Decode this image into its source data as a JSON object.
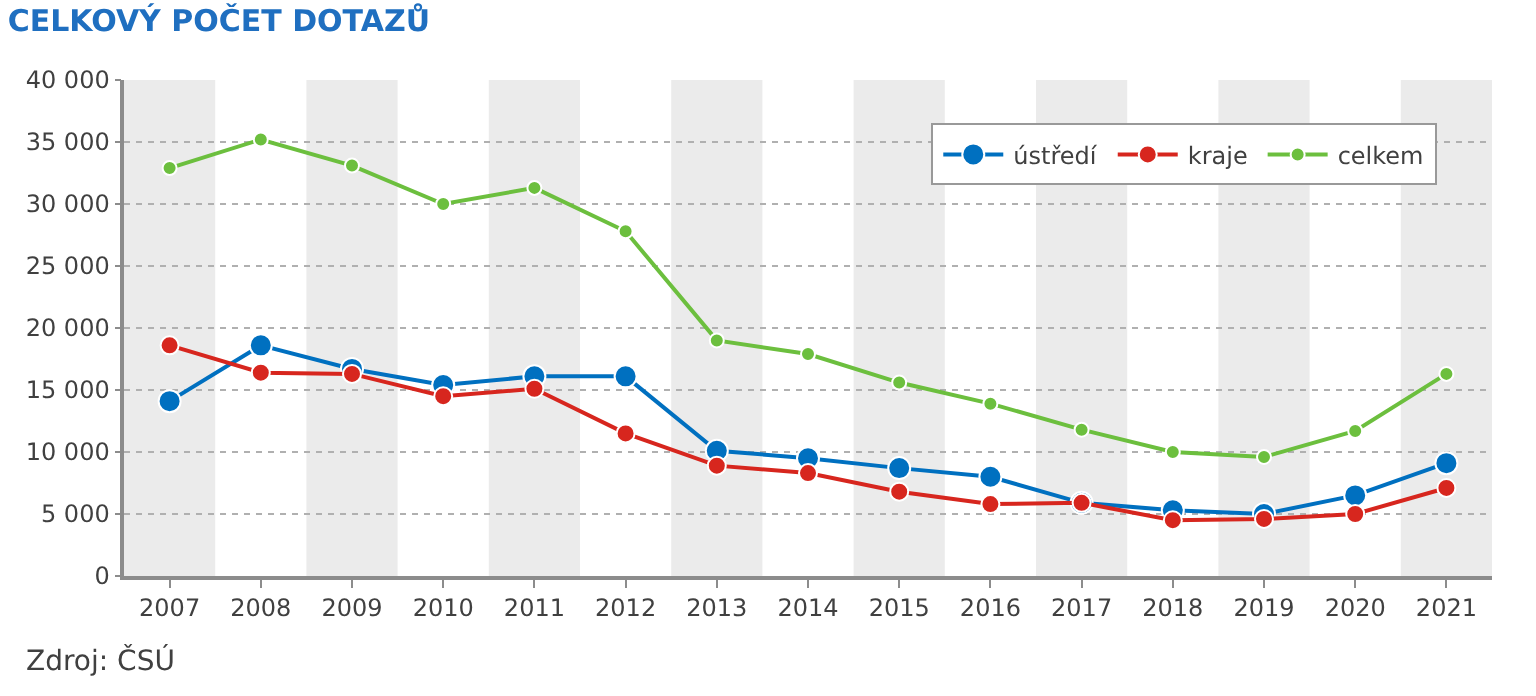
{
  "chart_data": {
    "type": "line",
    "title": "CELKOVÝ POČET DOTAZŮ",
    "categories": [
      "2007",
      "2008",
      "2009",
      "2010",
      "2011",
      "2012",
      "2013",
      "2014",
      "2015",
      "2016",
      "2017",
      "2018",
      "2019",
      "2020",
      "2021"
    ],
    "series": [
      {
        "name": "ústředí",
        "color": "#0070c0",
        "values": [
          14100,
          18600,
          16700,
          15400,
          16100,
          16100,
          10100,
          9500,
          8700,
          8000,
          5900,
          5300,
          5000,
          6500,
          9100
        ]
      },
      {
        "name": "kraje",
        "color": "#d7261e",
        "values": [
          18600,
          16400,
          16300,
          14500,
          15100,
          11500,
          8900,
          8300,
          6800,
          5800,
          5900,
          4500,
          4600,
          5000,
          7100
        ]
      },
      {
        "name": "celkem",
        "color": "#6cbf3e",
        "values": [
          32900,
          35200,
          33100,
          30000,
          31300,
          27800,
          19000,
          17900,
          15600,
          13900,
          11800,
          10000,
          9600,
          11700,
          16300
        ]
      }
    ],
    "ylim": [
      0,
      40000
    ],
    "yticks": [
      {
        "value": 0,
        "label": "0"
      },
      {
        "value": 5000,
        "label": "5 000"
      },
      {
        "value": 10000,
        "label": "10 000"
      },
      {
        "value": 15000,
        "label": "15 000"
      },
      {
        "value": 20000,
        "label": "20 000"
      },
      {
        "value": 25000,
        "label": "25 000"
      },
      {
        "value": 30000,
        "label": "30 000"
      },
      {
        "value": 35000,
        "label": "35 000"
      },
      {
        "value": 40000,
        "label": "40 000"
      }
    ],
    "bands": [
      {
        "axis": "x",
        "from": "2007",
        "to": "2007",
        "color": "#ebebeb"
      },
      {
        "axis": "x",
        "from": "2009",
        "to": "2009",
        "color": "#ebebeb"
      },
      {
        "axis": "x",
        "from": "2011",
        "to": "2011",
        "color": "#ebebeb"
      },
      {
        "axis": "x",
        "from": "2013",
        "to": "2013",
        "color": "#ebebeb"
      },
      {
        "axis": "x",
        "from": "2015",
        "to": "2015",
        "color": "#ebebeb"
      },
      {
        "axis": "x",
        "from": "2017",
        "to": "2017",
        "color": "#ebebeb"
      },
      {
        "axis": "x",
        "from": "2019",
        "to": "2019",
        "color": "#ebebeb"
      },
      {
        "axis": "x",
        "from": "2021",
        "to": "2021",
        "color": "#ebebeb"
      }
    ],
    "annotations": [
      "Zdroj: ČSÚ"
    ],
    "grid": "y",
    "legend": "top right",
    "marker": "circle",
    "line_style": "solid"
  }
}
